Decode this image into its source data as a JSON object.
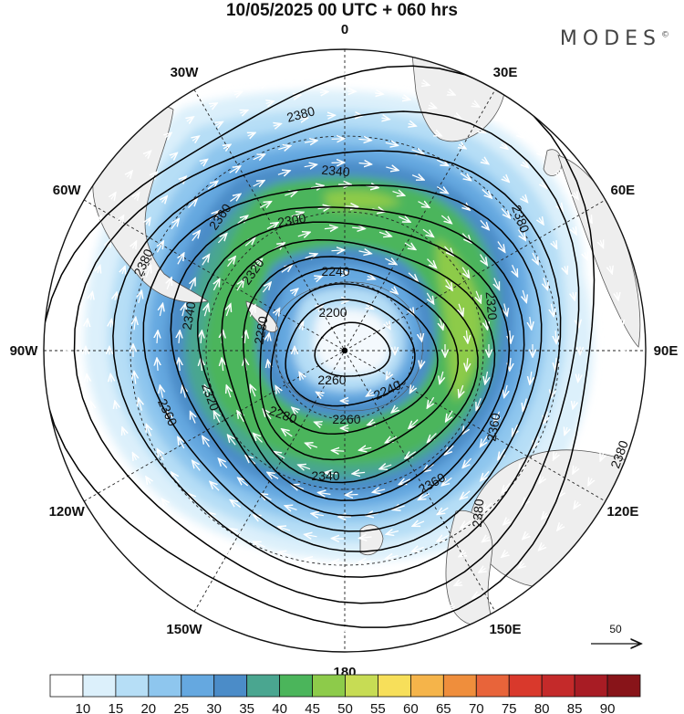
{
  "header": {
    "title": "10/05/2025  00 UTC  + 060 hrs",
    "brand": "MODES",
    "brand_mark": "©"
  },
  "map": {
    "projection": "south-polar-stereographic",
    "longitude_labels": [
      {
        "key": "0",
        "text": "0"
      },
      {
        "key": "30E",
        "text": "30E"
      },
      {
        "key": "60E",
        "text": "60E"
      },
      {
        "key": "90E",
        "text": "90E"
      },
      {
        "key": "120E",
        "text": "120E"
      },
      {
        "key": "150E",
        "text": "150E"
      },
      {
        "key": "180",
        "text": "180"
      },
      {
        "key": "150W",
        "text": "150W"
      },
      {
        "key": "120W",
        "text": "120W"
      },
      {
        "key": "90W",
        "text": "90W"
      },
      {
        "key": "60W",
        "text": "60W"
      },
      {
        "key": "30W",
        "text": "30W"
      }
    ],
    "geopotential_contours": [
      "2200",
      "2240",
      "2260",
      "2280",
      "2300",
      "2320",
      "2340",
      "2360",
      "2380"
    ],
    "contour_labels": [
      {
        "value": "2380",
        "text": "2380"
      },
      {
        "value": "2380",
        "text": "2380"
      },
      {
        "value": "2380",
        "text": "2380"
      },
      {
        "value": "2380",
        "text": "2380"
      },
      {
        "value": "2380",
        "text": "2380"
      },
      {
        "value": "2360",
        "text": "2360"
      },
      {
        "value": "2360",
        "text": "2360"
      },
      {
        "value": "2360",
        "text": "2360"
      },
      {
        "value": "2360",
        "text": "2360"
      },
      {
        "value": "2340",
        "text": "2340"
      },
      {
        "value": "2340",
        "text": "2340"
      },
      {
        "value": "2340",
        "text": "2340"
      },
      {
        "value": "2320",
        "text": "2320"
      },
      {
        "value": "2320",
        "text": "2320"
      },
      {
        "value": "2320",
        "text": "2320"
      },
      {
        "value": "2300",
        "text": "2300"
      },
      {
        "value": "2280",
        "text": "2280"
      },
      {
        "value": "2280",
        "text": "2280"
      },
      {
        "value": "2260",
        "text": "2260"
      },
      {
        "value": "2260",
        "text": "2260"
      },
      {
        "value": "2240",
        "text": "2240"
      },
      {
        "value": "2240",
        "text": "2240"
      },
      {
        "value": "2200",
        "text": "2200"
      }
    ],
    "wind_reference_vector": "50",
    "colors": {
      "land": "#eeeeee",
      "contour": "#000000",
      "vector": "#ffffff"
    }
  },
  "colorbar": {
    "labels": [
      "10",
      "15",
      "20",
      "25",
      "30",
      "35",
      "40",
      "45",
      "50",
      "55",
      "60",
      "65",
      "70",
      "75",
      "80",
      "85",
      "90"
    ],
    "colors": [
      "#ffffff",
      "#dcf0fb",
      "#b6def6",
      "#8ec6ee",
      "#65a8e0",
      "#4b8cc8",
      "#4aa690",
      "#4bb55b",
      "#8dcb4a",
      "#c7dc54",
      "#f7df5a",
      "#f5b44a",
      "#ef8e3c",
      "#e8643a",
      "#d9392c",
      "#c42a2a",
      "#a81c24",
      "#881419"
    ]
  }
}
